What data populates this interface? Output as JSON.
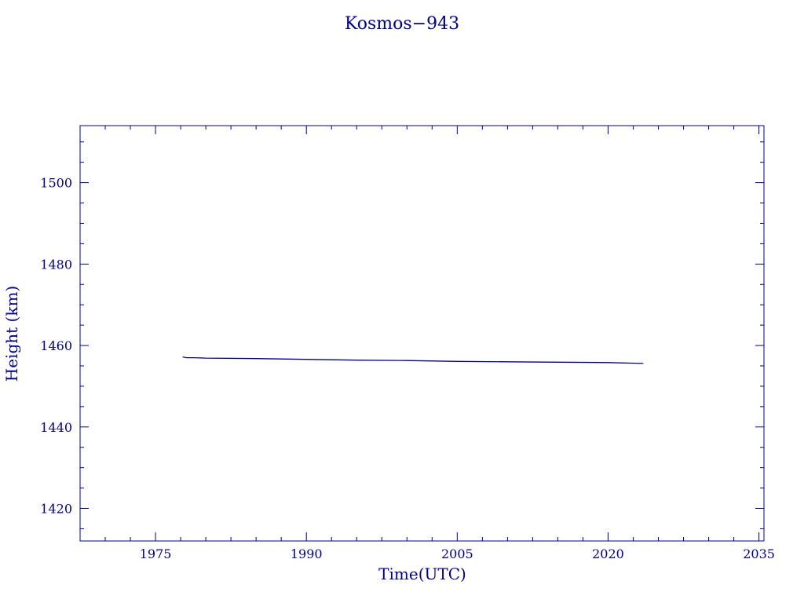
{
  "chart_data": {
    "type": "line",
    "title": "Kosmos−943",
    "xlabel": "Time(UTC)",
    "ylabel": "Height (km)",
    "xlim": [
      1967.5,
      2035.5
    ],
    "ylim": [
      1412,
      1514
    ],
    "x_ticks": [
      1975,
      1990,
      2005,
      2020,
      2035
    ],
    "y_ticks": [
      1420,
      1440,
      1460,
      1480,
      1500
    ],
    "x_minor_step": 2.5,
    "y_minor_step": 5,
    "grid": false,
    "color": "#00008b",
    "series": [
      {
        "x": [
          1977.7,
          1978.1,
          1978.8,
          1980,
          1985,
          1990,
          1995,
          2000,
          2005,
          2010,
          2015,
          2020,
          2023.5
        ],
        "y": [
          1457.2,
          1457.0,
          1457.0,
          1456.9,
          1456.8,
          1456.6,
          1456.4,
          1456.3,
          1456.1,
          1456.0,
          1455.9,
          1455.8,
          1455.6
        ]
      }
    ]
  }
}
